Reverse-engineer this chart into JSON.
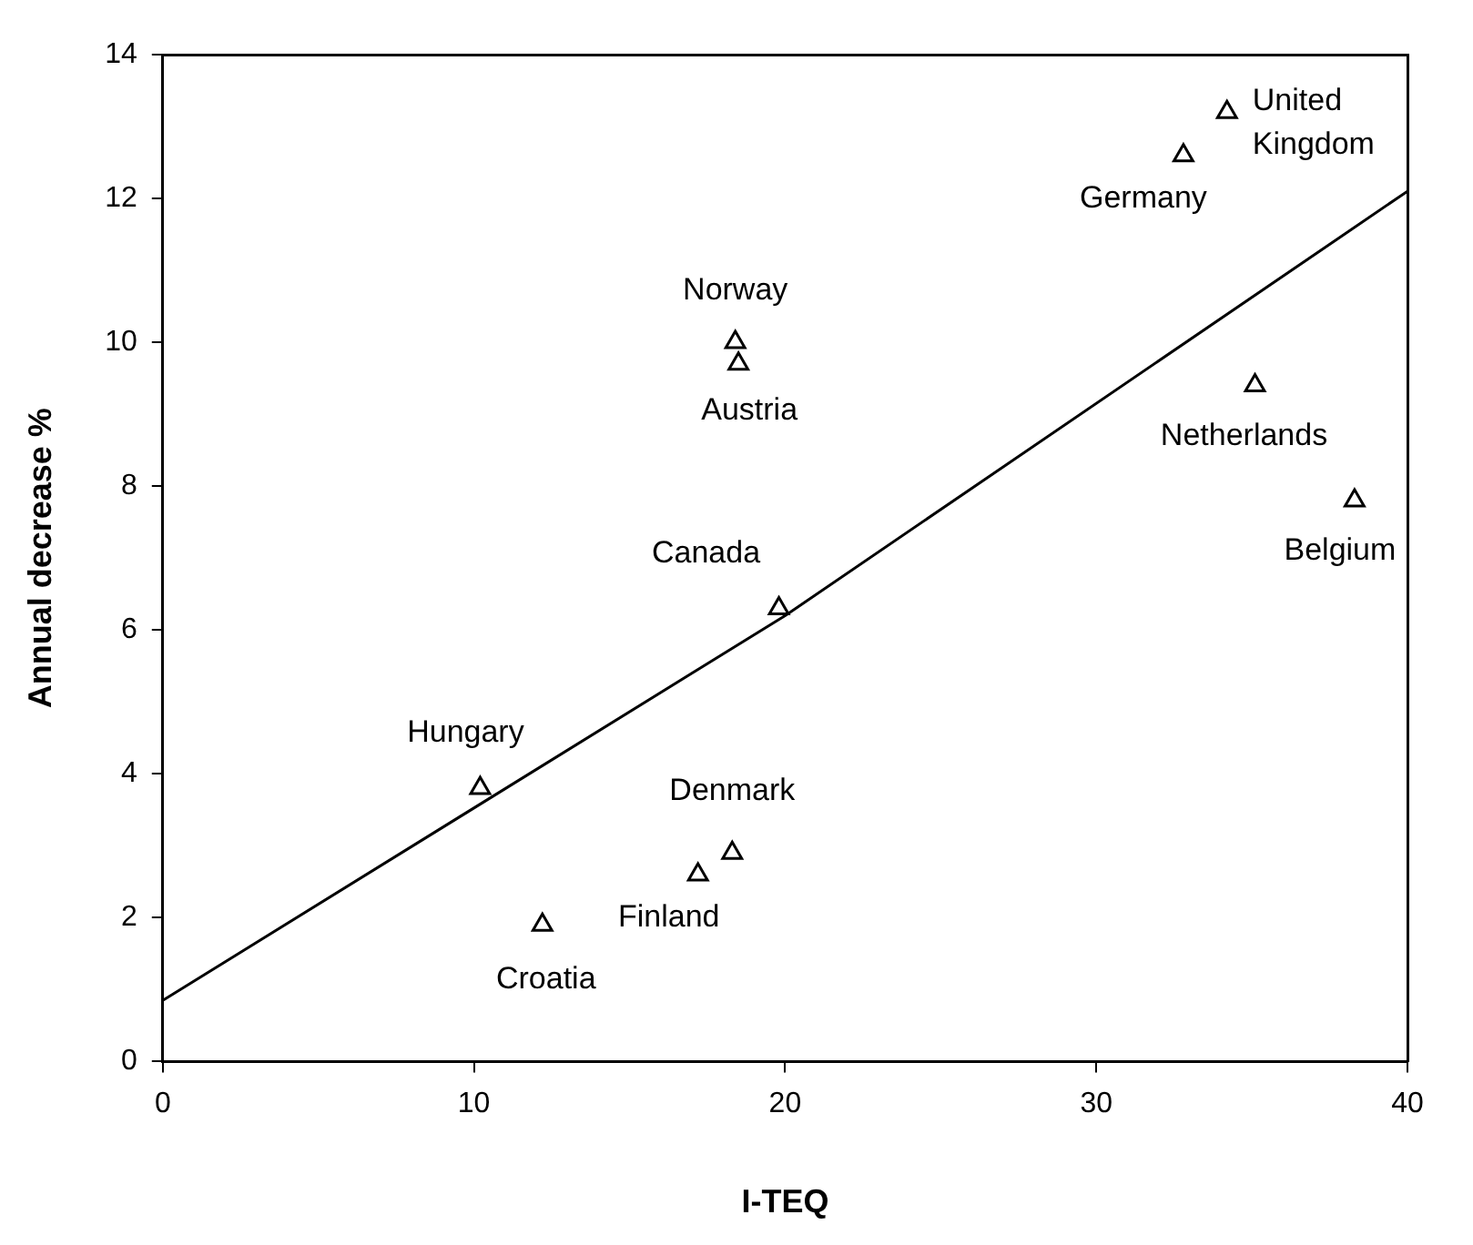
{
  "chart_data": {
    "type": "scatter",
    "xlabel": "I-TEQ",
    "ylabel": "Annual decrease %",
    "xlim": [
      0,
      40
    ],
    "ylim": [
      0,
      14
    ],
    "xticks": [
      0,
      10,
      20,
      30,
      40
    ],
    "yticks": [
      0,
      2,
      4,
      6,
      8,
      10,
      12,
      14
    ],
    "grid": false,
    "legend": false,
    "series": [
      {
        "marker": "triangle",
        "color": "#000000",
        "x": [
          10.2,
          12.2,
          17.2,
          18.3,
          19.8,
          18.4,
          18.5,
          32.8,
          34.2,
          35.1,
          38.3
        ],
        "values": [
          3.8,
          1.9,
          2.6,
          2.9,
          6.3,
          10.0,
          9.7,
          12.6,
          13.2,
          9.4,
          7.8
        ]
      },
      {
        "type": "line",
        "color": "#000000",
        "x": [
          0,
          20,
          40
        ],
        "values": [
          0.85,
          6.2,
          12.1
        ]
      }
    ],
    "annotations": [
      {
        "text": "Hungary",
        "x": 10.2,
        "y": 3.8
      },
      {
        "text": "Croatia",
        "x": 12.2,
        "y": 1.9
      },
      {
        "text": "Finland",
        "x": 17.2,
        "y": 2.6
      },
      {
        "text": "Denmark",
        "x": 18.3,
        "y": 2.9
      },
      {
        "text": "Canada",
        "x": 19.8,
        "y": 6.3
      },
      {
        "text": "Norway",
        "x": 18.4,
        "y": 10.0
      },
      {
        "text": "Austria",
        "x": 18.5,
        "y": 9.7
      },
      {
        "text": "Germany",
        "x": 32.8,
        "y": 12.6
      },
      {
        "text": "United Kingdom",
        "x": 34.2,
        "y": 13.2
      },
      {
        "text": "Netherlands",
        "x": 35.1,
        "y": 9.4
      },
      {
        "text": "Belgium",
        "x": 38.3,
        "y": 7.8
      }
    ]
  }
}
